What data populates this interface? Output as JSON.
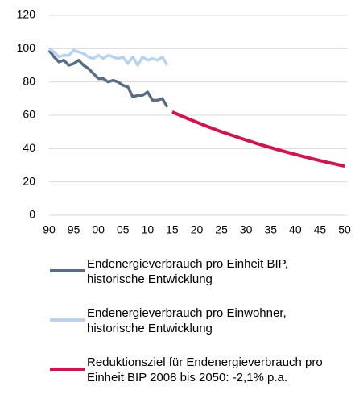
{
  "chart_data": {
    "type": "line",
    "categories": [
      "90",
      null,
      null,
      null,
      null,
      "95",
      null,
      null,
      null,
      null,
      "00",
      null,
      null,
      null,
      null,
      "05",
      null,
      null,
      null,
      null,
      "10",
      null,
      null,
      null,
      null,
      "15",
      null,
      null,
      null,
      null,
      "20",
      null,
      null,
      null,
      null,
      "25",
      null,
      null,
      null,
      null,
      "30",
      null,
      null,
      null,
      null,
      "35",
      null,
      null,
      null,
      null,
      "40",
      null,
      null,
      null,
      null,
      "45",
      null,
      null,
      null,
      null,
      "50"
    ],
    "series": [
      {
        "name": "Endenergieverbrauch pro Einheit BIP, historische Entwicklung",
        "color": "#5b6d84",
        "values": [
          99,
          95,
          92,
          93,
          90,
          91,
          93,
          90,
          88,
          85,
          82,
          82,
          80,
          81,
          80,
          78,
          77,
          71,
          72,
          72,
          74,
          69,
          69,
          70,
          65,
          null,
          null,
          null,
          null,
          null,
          null,
          null,
          null,
          null,
          null,
          null,
          null,
          null,
          null,
          null,
          null,
          null,
          null,
          null,
          null,
          null,
          null,
          null,
          null,
          null,
          null,
          null,
          null,
          null,
          null,
          null,
          null,
          null,
          null,
          null,
          null
        ]
      },
      {
        "name": "Endenergieverbrauch pro Einwohner, historische Entwicklung",
        "color": "#b7d3ef",
        "values": [
          100,
          98,
          95,
          96,
          96,
          99,
          98,
          97,
          95,
          94,
          96,
          94,
          96,
          95,
          94,
          95,
          91,
          95,
          90,
          95,
          93,
          94,
          93,
          95,
          90,
          null,
          null,
          null,
          null,
          null,
          null,
          null,
          null,
          null,
          null,
          null,
          null,
          null,
          null,
          null,
          null,
          null,
          null,
          null,
          null,
          null,
          null,
          null,
          null,
          null,
          null,
          null,
          null,
          null,
          null,
          null,
          null,
          null,
          null,
          null,
          null
        ]
      },
      {
        "name": "Reduktionsziel für Endenergieverbrauch pro Einheit BIP 2008 bis 2050: -2,1% p.a.",
        "color": "#d5124b",
        "values": [
          null,
          null,
          null,
          null,
          null,
          null,
          null,
          null,
          null,
          null,
          null,
          null,
          null,
          null,
          null,
          null,
          null,
          null,
          null,
          null,
          null,
          null,
          null,
          null,
          null,
          62.0,
          60.7,
          59.4,
          58.2,
          57.0,
          55.8,
          54.6,
          53.4,
          52.3,
          51.2,
          50.1,
          49.1,
          48.1,
          47.1,
          46.1,
          45.1,
          44.2,
          43.2,
          42.3,
          41.4,
          40.6,
          39.7,
          38.9,
          38.1,
          37.3,
          36.5,
          35.7,
          35.0,
          34.2,
          33.5,
          32.8,
          32.1,
          31.4,
          30.8,
          30.1,
          29.5
        ]
      }
    ],
    "ylim": [
      0,
      120
    ],
    "yticks": [
      0,
      20,
      40,
      60,
      80,
      100,
      120
    ],
    "grid": true
  }
}
